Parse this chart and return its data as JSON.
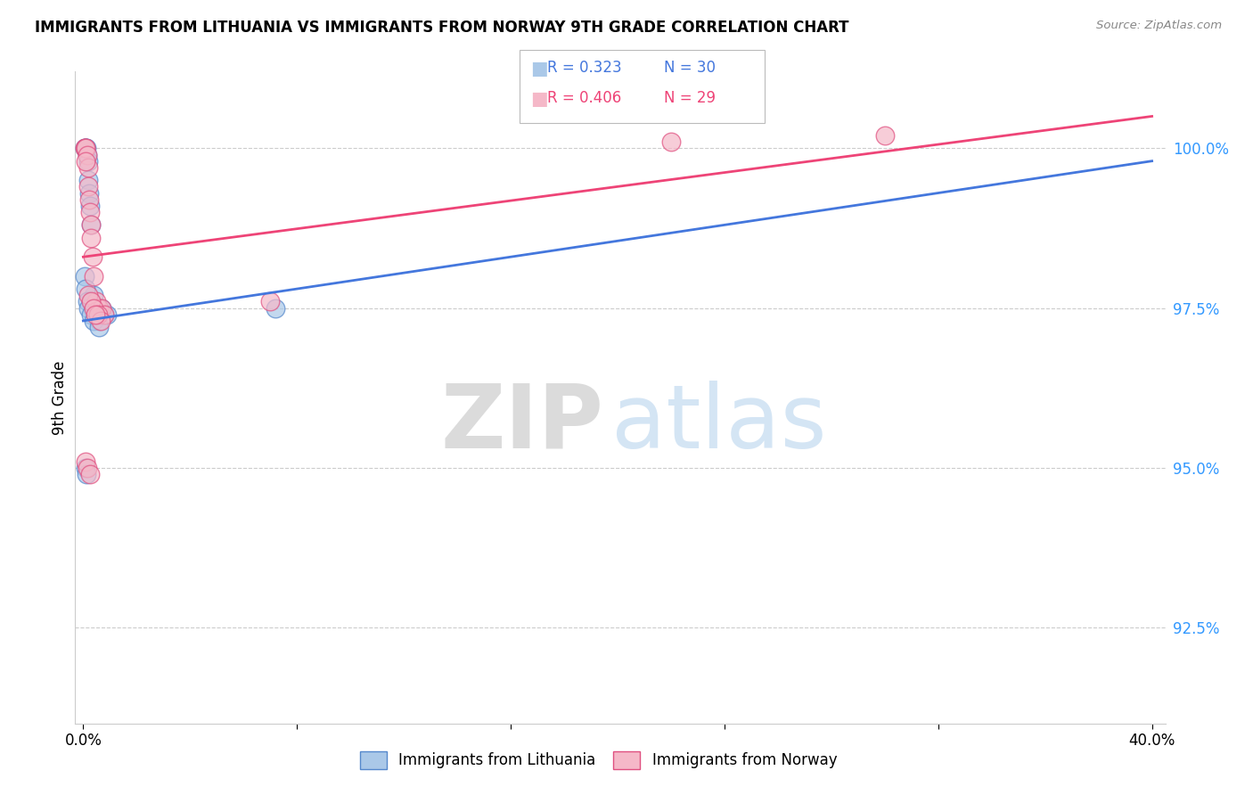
{
  "title": "IMMIGRANTS FROM LITHUANIA VS IMMIGRANTS FROM NORWAY 9TH GRADE CORRELATION CHART",
  "source": "Source: ZipAtlas.com",
  "ylabel": "9th Grade",
  "ytick_values": [
    100.0,
    97.5,
    95.0,
    92.5
  ],
  "ymin": 91.0,
  "ymax": 101.2,
  "xmin": -0.3,
  "xmax": 40.5,
  "legend_blue_label": "Immigrants from Lithuania",
  "legend_pink_label": "Immigrants from Norway",
  "legend_r_blue": "R = 0.323",
  "legend_n_blue": "N = 30",
  "legend_r_pink": "R = 0.406",
  "legend_n_pink": "N = 29",
  "blue_fill": "#aac8e8",
  "blue_edge": "#5588cc",
  "pink_fill": "#f5b8c8",
  "pink_edge": "#e05080",
  "blue_line": "#4477dd",
  "pink_line": "#ee4477",
  "scatter_blue_x": [
    0.05,
    0.08,
    0.1,
    0.12,
    0.15,
    0.18,
    0.2,
    0.22,
    0.25,
    0.28,
    0.3,
    0.35,
    0.4,
    0.45,
    0.5,
    0.55,
    0.6,
    0.7,
    0.8,
    0.9,
    0.05,
    0.1,
    0.15,
    0.2,
    0.3,
    0.4,
    0.6,
    7.2,
    0.08,
    0.12
  ],
  "scatter_blue_y": [
    100.0,
    100.0,
    100.0,
    100.0,
    99.9,
    99.8,
    99.5,
    99.3,
    99.1,
    98.8,
    97.6,
    97.5,
    97.7,
    97.5,
    97.4,
    97.4,
    97.3,
    97.5,
    97.4,
    97.4,
    98.0,
    97.8,
    97.6,
    97.5,
    97.4,
    97.3,
    97.2,
    97.5,
    95.0,
    94.9
  ],
  "scatter_pink_x": [
    0.05,
    0.08,
    0.1,
    0.15,
    0.18,
    0.2,
    0.22,
    0.25,
    0.28,
    0.3,
    0.35,
    0.4,
    0.5,
    0.6,
    0.7,
    0.8,
    0.1,
    0.2,
    0.3,
    0.4,
    0.55,
    0.65,
    7.0,
    22.0,
    30.0,
    0.08,
    0.15,
    0.25,
    0.45
  ],
  "scatter_pink_y": [
    100.0,
    100.0,
    100.0,
    99.9,
    99.7,
    99.4,
    99.2,
    99.0,
    98.8,
    98.6,
    98.3,
    98.0,
    97.6,
    97.5,
    97.5,
    97.4,
    99.8,
    97.7,
    97.6,
    97.5,
    97.4,
    97.3,
    97.6,
    100.1,
    100.2,
    95.1,
    95.0,
    94.9,
    97.4
  ],
  "blue_line_x0": 0.0,
  "blue_line_x1": 40.0,
  "blue_line_y0": 97.3,
  "blue_line_y1": 99.8,
  "pink_line_x0": 0.0,
  "pink_line_x1": 40.0,
  "pink_line_y0": 98.3,
  "pink_line_y1": 100.5
}
